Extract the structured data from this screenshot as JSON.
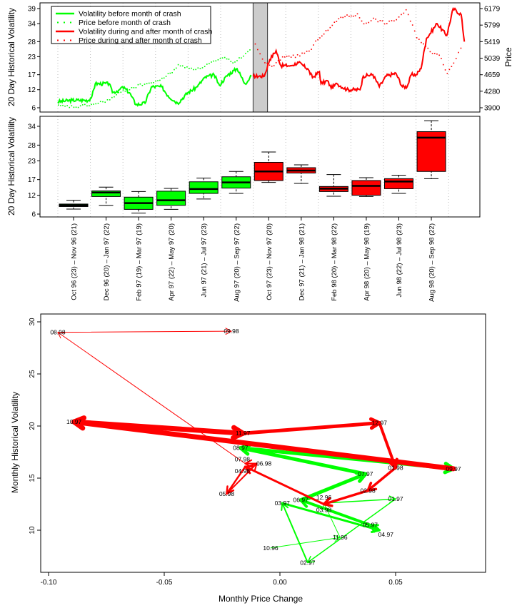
{
  "chart_data": [
    {
      "type": "line",
      "ylabel": "20 Day Historical Volatility",
      "y2label": "Price",
      "yticks": [
        6,
        12,
        17,
        23,
        28,
        34,
        39
      ],
      "y2ticks": [
        3900,
        4280,
        4659,
        5039,
        5419,
        5799,
        6179
      ],
      "ylim": [
        6,
        39
      ],
      "y2lim": [
        3900,
        6179
      ],
      "grid": "vertical dotted",
      "legend_position": "top-left",
      "shaded_period": [
        "1997-10-01",
        "1997-10-28"
      ],
      "colors": {
        "before": "#00ff00",
        "after": "#ff0000",
        "shade": "#cccccc"
      },
      "series": [
        {
          "name": "Volatility before month of crash",
          "style": "solid",
          "color": "#00ff00",
          "x": [
            "1996-10-01",
            "1996-10-28",
            "1996-11-28",
            "1996-12-04",
            "1996-12-10",
            "1997-01-05",
            "1997-01-11",
            "1997-01-24",
            "1997-01-30",
            "1997-02-12",
            "1997-02-24",
            "1997-03-13",
            "1997-03-25",
            "1997-04-13",
            "1997-04-25",
            "1997-05-13",
            "1997-06-01",
            "1997-06-19",
            "1997-07-02",
            "1997-07-20",
            "1997-07-30",
            "1997-08-15",
            "1997-09-01",
            "1997-09-16",
            "1997-09-28"
          ],
          "y": [
            8,
            8.5,
            8.5,
            10,
            14,
            14,
            11,
            12,
            13,
            11,
            7,
            7.5,
            13,
            13,
            10,
            7.5,
            11,
            13,
            16,
            17,
            13.5,
            17,
            19,
            14,
            16.5
          ]
        },
        {
          "name": "Price before month of crash",
          "style": "dotted",
          "color": "#00ff00",
          "x": [
            "1996-10-01",
            "1996-11-03",
            "1996-12-10",
            "1997-01-05",
            "1997-01-30",
            "1997-03-07",
            "1997-04-01",
            "1997-04-28",
            "1997-05-13",
            "1997-06-19",
            "1997-07-14",
            "1997-08-08",
            "1997-08-27",
            "1997-09-28"
          ],
          "y": [
            3950,
            3930,
            4000,
            4100,
            4300,
            4450,
            4500,
            4700,
            4880,
            4800,
            4950,
            5050,
            4950,
            5300
          ]
        },
        {
          "name": "Volatility during and after month of crash",
          "style": "solid",
          "color": "#ff0000",
          "x": [
            "1997-10-01",
            "1997-10-22",
            "1997-11-01",
            "1997-11-13",
            "1997-11-22",
            "1997-12-10",
            "1997-12-25",
            "1998-01-11",
            "1998-01-20",
            "1998-02-02",
            "1998-02-05",
            "1998-02-17",
            "1998-02-24",
            "1998-03-07",
            "1998-03-25",
            "1998-04-19",
            "1998-04-25",
            "1998-05-13",
            "1998-05-25",
            "1998-06-07",
            "1998-06-25",
            "1998-07-07",
            "1998-07-16",
            "1998-07-24",
            "1998-08-02",
            "1998-08-11",
            "1998-08-21",
            "1998-09-10",
            "1998-09-28",
            "1998-10-10",
            "1998-10-25",
            "1998-10-31"
          ],
          "y": [
            16.5,
            16.5,
            22,
            25,
            20,
            20,
            21,
            19,
            16,
            18,
            14,
            15,
            12.5,
            14,
            12,
            12,
            16.5,
            17,
            13,
            16.5,
            17.5,
            13,
            13,
            17,
            17,
            19,
            29,
            34,
            30,
            39,
            37,
            28
          ]
        },
        {
          "name": "Price during and after month of crash",
          "style": "dotted",
          "color": "#ff0000",
          "x": [
            "1997-10-04",
            "1997-10-22",
            "1997-11-04",
            "1997-11-28",
            "1997-12-22",
            "1998-01-17",
            "1998-01-29",
            "1998-02-17",
            "1998-03-13",
            "1998-04-13",
            "1998-04-25",
            "1998-05-13",
            "1998-06-07",
            "1998-06-25",
            "1998-07-13",
            "1998-08-02",
            "1998-08-27",
            "1998-09-13",
            "1998-09-28",
            "1998-10-10",
            "1998-10-28"
          ],
          "y": [
            5350,
            4950,
            4850,
            5100,
            5100,
            5250,
            5500,
            5700,
            6000,
            6050,
            5850,
            5950,
            5850,
            5950,
            6150,
            5550,
            5200,
            5150,
            4700,
            4950,
            5400
          ]
        }
      ]
    },
    {
      "type": "box",
      "ylabel": "20 Day Historical Volatility",
      "yticks": [
        6,
        12,
        17,
        23,
        28,
        34
      ],
      "ylim": [
        6,
        36
      ],
      "grid": "vertical dotted",
      "categories": [
        "Oct 96 (23) – Nov 96 (21)",
        "Dec 96 (20) – Jan 97 (22)",
        "Feb 97 (19) – Mar 97 (19)",
        "Apr 97 (22) – May 97 (20)",
        "Jun 97 (21) – Jul 97 (23)",
        "Aug 97 (20) – Sep 97 (22)",
        "Oct 97 (23) – Nov 97 (20)",
        "Dec 97 (21) – Jan 98 (21)",
        "Feb 98 (20) – Mar 98 (22)",
        "Apr 98 (20) – May 98 (19)",
        "Jun 98 (22) – Jul 98 (23)",
        "Aug 98 (20) – Sep 98 (22)"
      ],
      "colors": [
        "#00ff00",
        "#00ff00",
        "#00ff00",
        "#00ff00",
        "#00ff00",
        "#00ff00",
        "#ff0000",
        "#ff0000",
        "#ff0000",
        "#ff0000",
        "#ff0000",
        "#ff0000"
      ],
      "boxes": [
        {
          "min": 7.6,
          "q1": 8.4,
          "median": 8.8,
          "q3": 9.2,
          "max": 10.4
        },
        {
          "min": 8.8,
          "q1": 11.6,
          "median": 12.9,
          "q3": 13.4,
          "max": 14.6
        },
        {
          "min": 6.3,
          "q1": 7.5,
          "median": 9.5,
          "q3": 11.4,
          "max": 13.2
        },
        {
          "min": 7.5,
          "q1": 8.8,
          "median": 10.4,
          "q3": 13.3,
          "max": 14.2
        },
        {
          "min": 10.8,
          "q1": 12.6,
          "median": 14.0,
          "q3": 16.3,
          "max": 17.5
        },
        {
          "min": 12.6,
          "q1": 14.3,
          "median": 16.1,
          "q3": 17.9,
          "max": 19.6
        },
        {
          "min": 16.1,
          "q1": 16.7,
          "median": 19.6,
          "q3": 22.5,
          "max": 25.8
        },
        {
          "min": 15.8,
          "q1": 19.1,
          "median": 19.9,
          "q3": 20.8,
          "max": 21.7
        },
        {
          "min": 11.7,
          "q1": 13.2,
          "median": 14.1,
          "q3": 14.8,
          "max": 18.6
        },
        {
          "min": 11.6,
          "q1": 12.0,
          "median": 15.0,
          "q3": 16.7,
          "max": 17.6
        },
        {
          "min": 12.6,
          "q1": 14.1,
          "median": 16.4,
          "q3": 17.3,
          "max": 18.4
        },
        {
          "min": 17.3,
          "q1": 19.6,
          "median": 30.4,
          "q3": 32.3,
          "max": 35.8
        }
      ]
    },
    {
      "type": "scatter",
      "xlabel": "Monthly Price Change",
      "ylabel": "Monthly Historical Volatility",
      "xticks": [
        "-0.10",
        "-0.05",
        "0.00",
        "0.05"
      ],
      "yticks": [
        "10",
        "15",
        "20",
        "25",
        "30"
      ],
      "xlim": [
        -0.104,
        0.092
      ],
      "ylim": [
        6.3,
        31
      ],
      "connected": "arrows in month order",
      "points": [
        {
          "label": "10.96",
          "x": -0.004,
          "y": 8.3,
          "color": "#00ff00"
        },
        {
          "label": "11.96",
          "x": 0.026,
          "y": 9.3,
          "color": "#00ff00"
        },
        {
          "label": "12.96",
          "x": 0.019,
          "y": 12.6,
          "color": "#00ff00"
        },
        {
          "label": "01.97",
          "x": 0.05,
          "y": 13.0,
          "color": "#00ff00"
        },
        {
          "label": "02.97",
          "x": 0.012,
          "y": 6.9,
          "color": "#00ff00"
        },
        {
          "label": "03.97",
          "x": 0.001,
          "y": 12.6,
          "color": "#00ff00"
        },
        {
          "label": "04.97",
          "x": 0.043,
          "y": 10.0,
          "color": "#00ff00"
        },
        {
          "label": "05.97",
          "x": 0.039,
          "y": 10.5,
          "color": "#00ff00"
        },
        {
          "label": "06.97",
          "x": 0.009,
          "y": 12.9,
          "color": "#00ff00"
        },
        {
          "label": "07.97",
          "x": 0.037,
          "y": 15.4,
          "color": "#00ff00"
        },
        {
          "label": "08.97",
          "x": -0.017,
          "y": 17.9,
          "color": "#00ff00"
        },
        {
          "label": "09.97",
          "x": 0.075,
          "y": 15.9,
          "color": "#00ff00"
        },
        {
          "label": "10.97",
          "x": -0.089,
          "y": 20.4,
          "color": "#ff0000"
        },
        {
          "label": "11.97",
          "x": -0.016,
          "y": 19.3,
          "color": "#ff0000"
        },
        {
          "label": "12.97",
          "x": 0.043,
          "y": 20.3,
          "color": "#ff0000"
        },
        {
          "label": "01.98",
          "x": 0.05,
          "y": 16.0,
          "color": "#ff0000"
        },
        {
          "label": "02.98",
          "x": 0.038,
          "y": 13.8,
          "color": "#ff0000"
        },
        {
          "label": "03.98",
          "x": 0.019,
          "y": 12.5,
          "color": "#ff0000"
        },
        {
          "label": "04.98",
          "x": -0.015,
          "y": 16.1,
          "color": "#ff0000"
        },
        {
          "label": "05.98",
          "x": -0.023,
          "y": 13.5,
          "color": "#ff0000"
        },
        {
          "label": "06.98",
          "x": -0.01,
          "y": 16.4,
          "color": "#ff0000"
        },
        {
          "label": "07.98",
          "x": -0.015,
          "y": 16.4,
          "color": "#ff0000"
        },
        {
          "label": "08.98",
          "x": -0.096,
          "y": 29.0,
          "color": "#ff0000"
        },
        {
          "label": "09.98",
          "x": -0.021,
          "y": 29.1,
          "color": "#ff0000"
        }
      ]
    }
  ]
}
